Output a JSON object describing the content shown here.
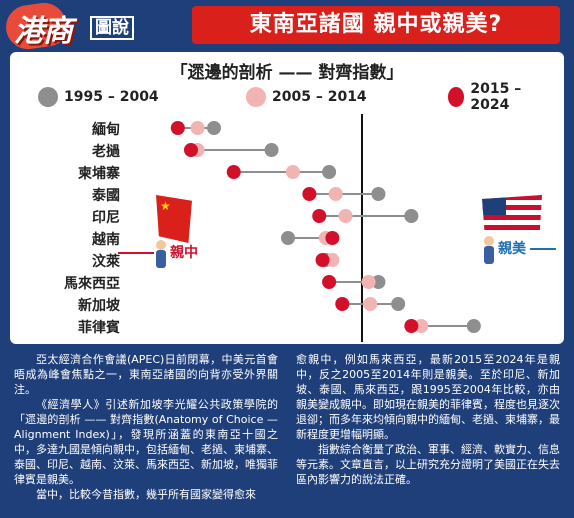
{
  "header": {
    "logo_main": "港商",
    "logo_sub": "圖說",
    "headline": "東南亞諸國 親中或親美?"
  },
  "chart_data": {
    "type": "dumbbell",
    "title": "「遝邊的剖析 —— 對齊指數」",
    "legend": [
      {
        "label": "1995 – 2004",
        "color": "#8e8e8e"
      },
      {
        "label": "2005 – 2014",
        "color": "#f2b3b3"
      },
      {
        "label": "2015 – 2024",
        "color": "#d2102a"
      }
    ],
    "categories": [
      "緬甸",
      "老撾",
      "柬埔寨",
      "泰國",
      "印尼",
      "越南",
      "汶萊",
      "馬來西亞",
      "新加坡",
      "菲律賓"
    ],
    "series": [
      {
        "name": "1995 – 2004",
        "values": [
          -0.9,
          -0.55,
          -0.2,
          0.1,
          0.3,
          -0.45,
          -0.22,
          0.1,
          0.22,
          0.68
        ]
      },
      {
        "name": "2005 – 2014",
        "values": [
          -1.0,
          -1.0,
          -0.42,
          -0.16,
          -0.1,
          -0.22,
          -0.18,
          0.04,
          0.05,
          0.36
        ]
      },
      {
        "name": "2015 – 2024",
        "values": [
          -1.12,
          -1.04,
          -0.78,
          -0.32,
          -0.26,
          -0.18,
          -0.24,
          -0.2,
          -0.12,
          0.3
        ]
      }
    ],
    "xlim": [
      -1.35,
      0.9
    ],
    "center": 0,
    "annotations": {
      "left": "親中",
      "right": "親美"
    }
  },
  "body_text": {
    "col1": [
      "亞太經濟合作會議(APEC)日前閉幕，中美元首會晤成為峰會焦點之一，東南亞諸國的向背亦受外界關注。",
      "《經濟學人》引述新加坡李光耀公共政策學院的「遝邊的剖析 —— 對齊指數(Anatomy of Choice — Alignment Index)」，發現所涵蓋的東南亞十國之中，多達九國是傾向親中，包括緬甸、老撾、柬埔寨、泰國、印尼、越南、汶萊、馬來西亞、新加坡，唯獨菲律賓是親美。",
      "當中，比較今昔指數，幾乎所有國家變得愈來"
    ],
    "col2": [
      "愈親中，例如馬來西亞，最新2015至2024年是親中，反之2005至2014年則是親美。至於印尼、新加坡、泰國、馬來西亞，跟1995至2004年比較，亦由親美變成親中。即如現在親美的菲律賓，程度也見逐次退卻；而多年來均傾向親中的緬甸、老撾、柬埔寨，最新程度更增幅明顯。",
      "指數綜合衡量了政治、軍事、經濟、軟實力、信息等元素。文章直言，以上研究充分證明了美國正在失去區內影響力的說法正確。"
    ]
  }
}
